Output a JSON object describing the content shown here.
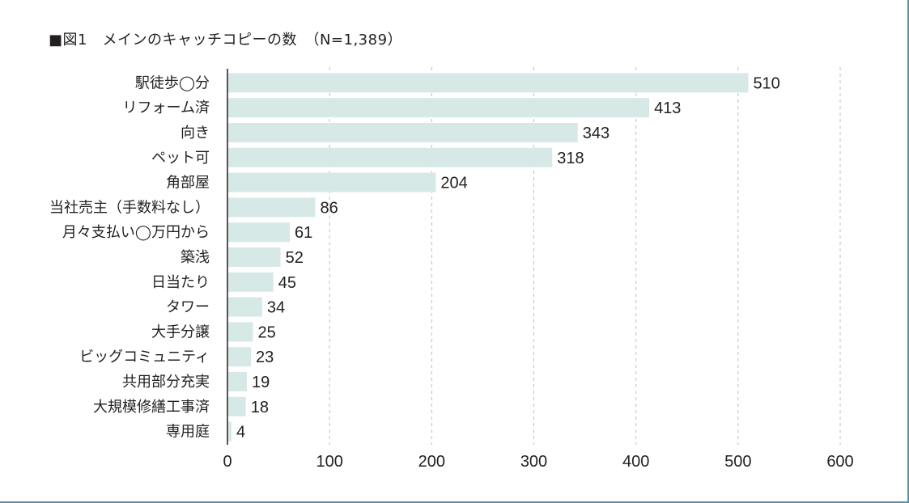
{
  "chart_data": {
    "type": "bar",
    "orientation": "horizontal",
    "title": "■図1　メインのキャッチコピーの数　（N=1,389）",
    "categories": [
      "駅徒歩◯分",
      "リフォーム済",
      "向き",
      "ペット可",
      "角部屋",
      "当社売主（手数料なし）",
      "月々支払い◯万円から",
      "築浅",
      "日当たり",
      "タワー",
      "大手分譲",
      "ビッグコミュニティ",
      "共用部分充実",
      "大規模修繕工事済",
      "専用庭"
    ],
    "values": [
      510,
      413,
      343,
      318,
      204,
      86,
      61,
      52,
      45,
      34,
      25,
      23,
      19,
      18,
      4
    ],
    "xlim": [
      0,
      600
    ],
    "xticks": [
      "0",
      "100",
      "200",
      "300",
      "400",
      "500",
      "600"
    ],
    "xtick_values": [
      0,
      100,
      200,
      300,
      400,
      500,
      600
    ],
    "grid": "vertical dashed",
    "xlabel": "",
    "ylabel": "",
    "colors": {
      "bar": "#d7e9e6",
      "axis": "#231f20",
      "grid": "#bfbfbf",
      "frame": "#5f8fa2"
    }
  }
}
